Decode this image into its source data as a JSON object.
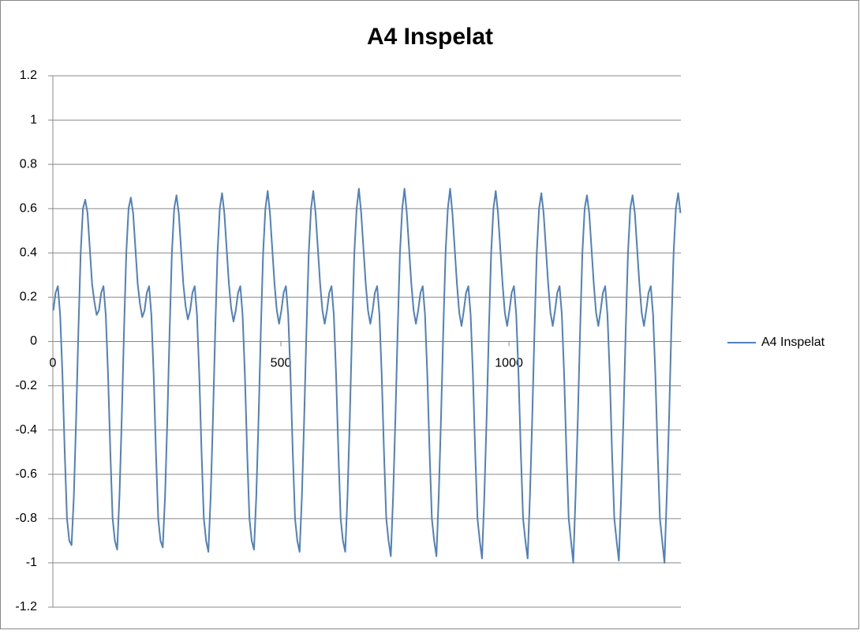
{
  "chart_data": {
    "type": "line",
    "title": "A4 Inspelat",
    "x": [
      1,
      6,
      11,
      16,
      21,
      26,
      31,
      36,
      41,
      46,
      51,
      56,
      61,
      66,
      71,
      76,
      81,
      86,
      91,
      96,
      101,
      106,
      111,
      116,
      121,
      126,
      131,
      136,
      141,
      146,
      151,
      156,
      161,
      166,
      171,
      176,
      181,
      186,
      191,
      196,
      201,
      206,
      211,
      216,
      221,
      226,
      231,
      236,
      241,
      246,
      251,
      256,
      261,
      266,
      271,
      276,
      281,
      286,
      291,
      296,
      301,
      306,
      311,
      316,
      321,
      326,
      331,
      336,
      341,
      346,
      351,
      356,
      361,
      366,
      371,
      376,
      381,
      386,
      391,
      396,
      401,
      406,
      411,
      416,
      421,
      426,
      431,
      436,
      441,
      446,
      451,
      456,
      461,
      466,
      471,
      476,
      481,
      486,
      491,
      496,
      501,
      506,
      511,
      516,
      521,
      526,
      531,
      536,
      541,
      546,
      551,
      556,
      561,
      566,
      571,
      576,
      581,
      586,
      591,
      596,
      601,
      606,
      611,
      616,
      621,
      626,
      631,
      636,
      641,
      646,
      651,
      656,
      661,
      666,
      671,
      676,
      681,
      686,
      691,
      696,
      701,
      706,
      711,
      716,
      721,
      726,
      731,
      736,
      741,
      746,
      751,
      756,
      761,
      766,
      771,
      776,
      781,
      786,
      791,
      796,
      801,
      806,
      811,
      816,
      821,
      826,
      831,
      836,
      841,
      846,
      851,
      856,
      861,
      866,
      871,
      876,
      881,
      886,
      891,
      896,
      901,
      906,
      911,
      916,
      921,
      926,
      931,
      936,
      941,
      946,
      951,
      956,
      961,
      966,
      971,
      976,
      981,
      986,
      991,
      996,
      1001,
      1006,
      1011,
      1016,
      1021,
      1026,
      1031,
      1036,
      1041,
      1046,
      1051,
      1056,
      1061,
      1066,
      1071,
      1076,
      1081,
      1086,
      1091,
      1096,
      1101,
      1106,
      1111,
      1116,
      1121,
      1126,
      1131,
      1136,
      1141,
      1146,
      1151,
      1156,
      1161,
      1166,
      1171,
      1176,
      1181,
      1186,
      1191,
      1196,
      1201,
      1206,
      1211,
      1216,
      1221,
      1226,
      1231,
      1236,
      1241,
      1246,
      1251,
      1256,
      1261,
      1266,
      1271,
      1276,
      1281,
      1286,
      1291,
      1296,
      1301,
      1306,
      1311,
      1316,
      1321,
      1326,
      1331,
      1336,
      1341,
      1346,
      1351,
      1356,
      1361,
      1366,
      1371,
      1376
    ],
    "series": [
      {
        "name": "A4 Inspelat",
        "color": "#4f81bd",
        "values": [
          0.14,
          0.22,
          0.25,
          0.12,
          -0.15,
          -0.5,
          -0.8,
          -0.9,
          -0.92,
          -0.7,
          -0.35,
          0.05,
          0.4,
          0.6,
          0.64,
          0.58,
          0.42,
          0.26,
          0.18,
          0.12,
          0.14,
          0.22,
          0.25,
          0.12,
          -0.15,
          -0.5,
          -0.8,
          -0.9,
          -0.94,
          -0.7,
          -0.35,
          0.05,
          0.4,
          0.6,
          0.65,
          0.58,
          0.42,
          0.26,
          0.17,
          0.11,
          0.14,
          0.22,
          0.25,
          0.12,
          -0.15,
          -0.5,
          -0.8,
          -0.9,
          -0.93,
          -0.7,
          -0.35,
          0.05,
          0.4,
          0.6,
          0.66,
          0.58,
          0.42,
          0.26,
          0.16,
          0.1,
          0.14,
          0.22,
          0.25,
          0.12,
          -0.15,
          -0.5,
          -0.8,
          -0.9,
          -0.95,
          -0.7,
          -0.35,
          0.05,
          0.4,
          0.6,
          0.67,
          0.58,
          0.42,
          0.26,
          0.15,
          0.09,
          0.14,
          0.22,
          0.25,
          0.12,
          -0.15,
          -0.5,
          -0.8,
          -0.9,
          -0.94,
          -0.7,
          -0.35,
          0.05,
          0.4,
          0.6,
          0.68,
          0.58,
          0.42,
          0.26,
          0.14,
          0.08,
          0.14,
          0.22,
          0.25,
          0.12,
          -0.15,
          -0.5,
          -0.8,
          -0.9,
          -0.95,
          -0.7,
          -0.35,
          0.05,
          0.4,
          0.6,
          0.68,
          0.58,
          0.42,
          0.26,
          0.14,
          0.08,
          0.14,
          0.22,
          0.25,
          0.12,
          -0.15,
          -0.5,
          -0.8,
          -0.9,
          -0.95,
          -0.7,
          -0.35,
          0.05,
          0.4,
          0.6,
          0.69,
          0.58,
          0.42,
          0.26,
          0.14,
          0.08,
          0.14,
          0.22,
          0.25,
          0.12,
          -0.15,
          -0.5,
          -0.8,
          -0.9,
          -0.97,
          -0.7,
          -0.35,
          0.05,
          0.4,
          0.6,
          0.69,
          0.58,
          0.42,
          0.26,
          0.14,
          0.08,
          0.14,
          0.22,
          0.25,
          0.12,
          -0.15,
          -0.5,
          -0.8,
          -0.9,
          -0.97,
          -0.7,
          -0.35,
          0.05,
          0.4,
          0.6,
          0.69,
          0.58,
          0.42,
          0.26,
          0.13,
          0.07,
          0.14,
          0.22,
          0.25,
          0.12,
          -0.15,
          -0.5,
          -0.8,
          -0.9,
          -0.98,
          -0.7,
          -0.35,
          0.05,
          0.4,
          0.6,
          0.68,
          0.58,
          0.42,
          0.26,
          0.13,
          0.07,
          0.14,
          0.22,
          0.25,
          0.12,
          -0.15,
          -0.5,
          -0.8,
          -0.9,
          -0.98,
          -0.7,
          -0.35,
          0.05,
          0.4,
          0.6,
          0.67,
          0.58,
          0.42,
          0.26,
          0.13,
          0.07,
          0.14,
          0.22,
          0.25,
          0.12,
          -0.15,
          -0.5,
          -0.8,
          -0.9,
          -1.0,
          -0.7,
          -0.35,
          0.05,
          0.4,
          0.6,
          0.66,
          0.58,
          0.42,
          0.26,
          0.13,
          0.07,
          0.14,
          0.22,
          0.25,
          0.12,
          -0.15,
          -0.5,
          -0.8,
          -0.9,
          -0.99,
          -0.7,
          -0.35,
          0.05,
          0.4,
          0.6,
          0.66,
          0.58,
          0.42,
          0.26,
          0.13,
          0.07,
          0.14,
          0.22,
          0.25,
          0.12,
          -0.15,
          -0.5,
          -0.8,
          -0.9,
          -1.0,
          -0.7,
          -0.35,
          0.05,
          0.4,
          0.6,
          0.67,
          0.58
        ]
      }
    ],
    "xlim": [
      0,
      1377
    ],
    "xticks": [
      0,
      500,
      1000
    ],
    "ylim": [
      -1.2,
      1.2
    ],
    "yticks": [
      -1.2,
      -1,
      -0.8,
      -0.6,
      -0.4,
      -0.2,
      0,
      0.2,
      0.4,
      0.6,
      0.8,
      1,
      1.2
    ],
    "grid": true,
    "legend": "right"
  }
}
